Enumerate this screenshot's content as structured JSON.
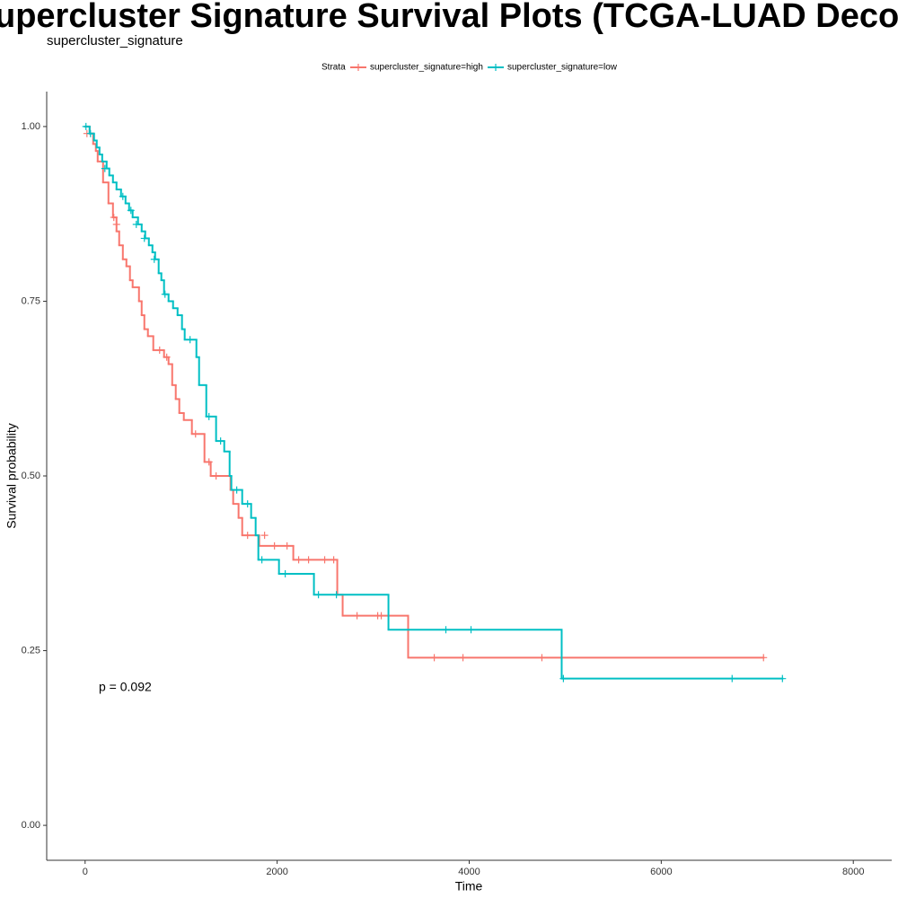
{
  "chart_data": {
    "type": "km",
    "title": "upercluster Signature Survival Plots (TCGA-LUAD Deconvolve",
    "subtitle": "supercluster_signature",
    "x_label": "Time",
    "y_label": "Survival probability",
    "annotation": "p = 0.092",
    "legend_title": "Strata",
    "legend_position": "top",
    "xlim": [
      -400,
      8400
    ],
    "ylim": [
      -0.05,
      1.05
    ],
    "xticks": [
      0,
      2000,
      4000,
      6000,
      8000
    ],
    "yticks": [
      {
        "value": 0,
        "label": "0.00"
      },
      {
        "value": 0.25,
        "label": "0.25"
      },
      {
        "value": 0.5,
        "label": "0.50"
      },
      {
        "value": 0.75,
        "label": "0.75"
      },
      {
        "value": 1,
        "label": "1.00"
      }
    ],
    "series": [
      {
        "name": "supercluster_signature=high",
        "color": "#F8766D",
        "x": [
          0,
          47,
          84,
          112,
          131,
          187,
          243,
          290,
          327,
          355,
          393,
          430,
          467,
          495,
          561,
          589,
          617,
          654,
          710,
          822,
          869,
          907,
          944,
          981,
          1028,
          1112,
          1243,
          1308,
          1514,
          1542,
          1598,
          1636,
          1813,
          2168,
          2626,
          2682,
          3364,
          7065
        ],
        "values": [
          1.0,
          0.99,
          0.975,
          0.965,
          0.95,
          0.92,
          0.89,
          0.87,
          0.85,
          0.83,
          0.81,
          0.8,
          0.78,
          0.77,
          0.75,
          0.73,
          0.71,
          0.7,
          0.68,
          0.67,
          0.66,
          0.63,
          0.61,
          0.59,
          0.58,
          0.56,
          0.52,
          0.5,
          0.48,
          0.46,
          0.44,
          0.415,
          0.4,
          0.38,
          0.33,
          0.3,
          0.24,
          0.24
        ],
        "censor_x": [
          19,
          299,
          327,
          776,
          850,
          1150,
          1290,
          1364,
          1692,
          1869,
          1972,
          2103,
          2224,
          2327,
          2495,
          2589,
          2832,
          3047,
          3084,
          3636,
          3935,
          4757,
          7065
        ],
        "censor_values": [
          0.99,
          0.87,
          0.86,
          0.68,
          0.67,
          0.56,
          0.52,
          0.5,
          0.415,
          0.415,
          0.4,
          0.4,
          0.38,
          0.38,
          0.38,
          0.38,
          0.3,
          0.3,
          0.3,
          0.24,
          0.24,
          0.24,
          0.24
        ]
      },
      {
        "name": "supercluster_signature=low",
        "color": "#00BFC4",
        "x": [
          0,
          47,
          93,
          121,
          150,
          178,
          224,
          252,
          290,
          327,
          374,
          421,
          458,
          495,
          551,
          589,
          626,
          664,
          701,
          729,
          766,
          794,
          822,
          869,
          916,
          963,
          1009,
          1037,
          1159,
          1187,
          1262,
          1364,
          1449,
          1505,
          1523,
          1636,
          1729,
          1776,
          1804,
          2019,
          2383,
          3159,
          4963,
          7262
        ],
        "values": [
          1.0,
          0.99,
          0.98,
          0.97,
          0.96,
          0.95,
          0.94,
          0.93,
          0.92,
          0.91,
          0.9,
          0.89,
          0.88,
          0.87,
          0.86,
          0.85,
          0.84,
          0.83,
          0.82,
          0.81,
          0.79,
          0.78,
          0.76,
          0.75,
          0.74,
          0.73,
          0.71,
          0.695,
          0.67,
          0.63,
          0.585,
          0.55,
          0.535,
          0.5,
          0.48,
          0.46,
          0.44,
          0.415,
          0.38,
          0.36,
          0.33,
          0.28,
          0.21,
          0.21
        ],
        "censor_x": [
          9,
          56,
          206,
          393,
          477,
          533,
          617,
          720,
          832,
          1093,
          1290,
          1411,
          1579,
          1692,
          1841,
          2084,
          2430,
          2617,
          3757,
          4019,
          4981,
          6738,
          7262
        ],
        "censor_values": [
          1.0,
          0.99,
          0.94,
          0.9,
          0.88,
          0.86,
          0.84,
          0.81,
          0.76,
          0.695,
          0.585,
          0.55,
          0.48,
          0.46,
          0.38,
          0.36,
          0.33,
          0.33,
          0.28,
          0.28,
          0.21,
          0.21,
          0.21
        ]
      }
    ]
  }
}
